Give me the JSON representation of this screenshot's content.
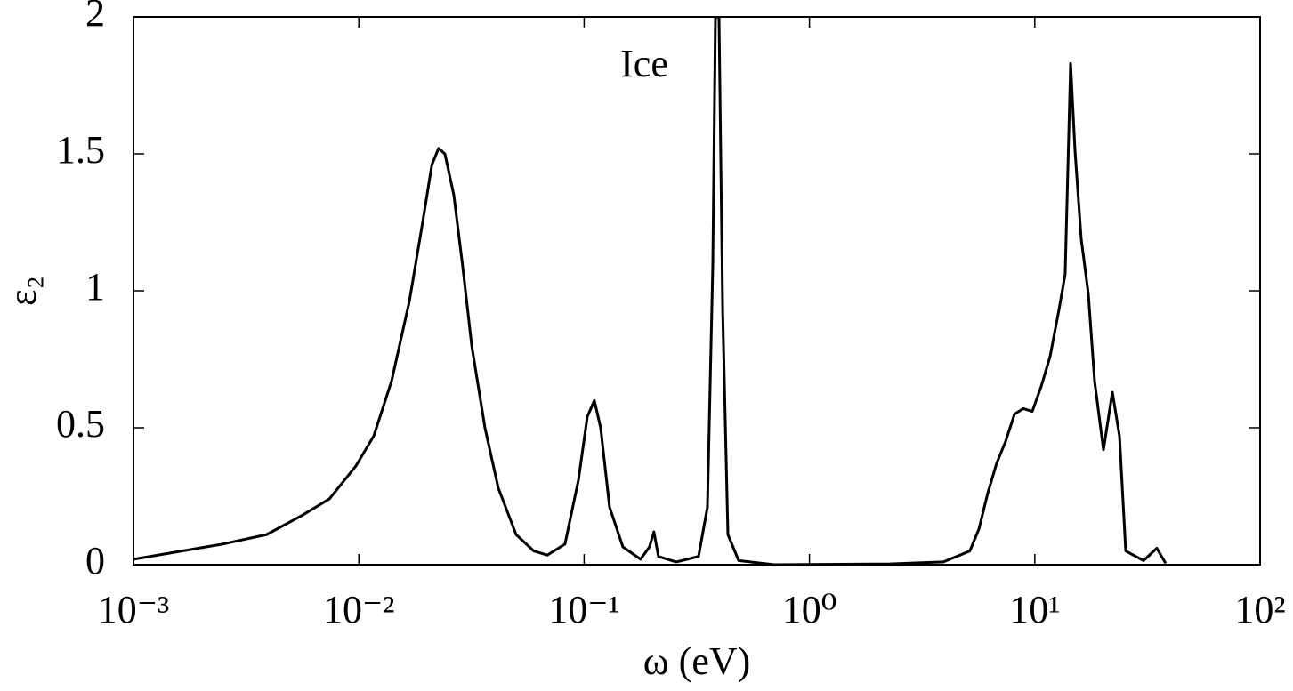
{
  "chart_data": {
    "type": "line",
    "xlabel": "ω (eV)",
    "ylabel": "ε₂",
    "annotation": "Ice",
    "color": "#000000",
    "xscale": "log",
    "xlim": [
      0.001,
      100
    ],
    "ylim": [
      0,
      2
    ],
    "xticks": [
      {
        "value": 0.001,
        "label": "10⁻³"
      },
      {
        "value": 0.01,
        "label": "10⁻²"
      },
      {
        "value": 0.1,
        "label": "10⁻¹"
      },
      {
        "value": 1,
        "label": "10⁰"
      },
      {
        "value": 10,
        "label": "10¹"
      },
      {
        "value": 100,
        "label": "10²"
      }
    ],
    "yticks": [
      0,
      0.5,
      1,
      1.5,
      2
    ],
    "x": [
      0.001,
      0.00248,
      0.0039,
      0.0056,
      0.0074,
      0.0097,
      0.01165,
      0.01397,
      0.01675,
      0.0192,
      0.0211,
      0.0226,
      0.0241,
      0.0264,
      0.0289,
      0.0317,
      0.0363,
      0.0416,
      0.0499,
      0.0598,
      0.0686,
      0.0822,
      0.0944,
      0.1033,
      0.111,
      0.1184,
      0.1297,
      0.1486,
      0.178,
      0.195,
      0.204,
      0.2137,
      0.2562,
      0.322,
      0.3526,
      0.3724,
      0.3827,
      0.397,
      0.412,
      0.4347,
      0.485,
      0.698,
      2.275,
      3.93,
      5.15,
      5.65,
      6.18,
      6.77,
      7.42,
      8.13,
      8.9,
      9.75,
      10.67,
      11.69,
      12.8,
      13.64,
      14.42,
      15.09,
      16.07,
      17.28,
      18.43,
      20.18,
      22.1,
      23.77,
      25.33,
      30.4,
      34.8,
      38.1
    ],
    "values": [
      0.02,
      0.075,
      0.11,
      0.18,
      0.24,
      0.36,
      0.47,
      0.67,
      0.96,
      1.25,
      1.46,
      1.52,
      1.5,
      1.35,
      1.09,
      0.8,
      0.5,
      0.28,
      0.11,
      0.05,
      0.035,
      0.075,
      0.31,
      0.54,
      0.6,
      0.5,
      0.21,
      0.065,
      0.02,
      0.065,
      0.12,
      0.03,
      0.01,
      0.03,
      0.21,
      1.09,
      2.0,
      2.0,
      0.93,
      0.11,
      0.015,
      0,
      0.003,
      0.01,
      0.05,
      0.13,
      0.26,
      0.37,
      0.45,
      0.55,
      0.57,
      0.56,
      0.65,
      0.76,
      0.93,
      1.06,
      1.83,
      1.51,
      1.19,
      0.99,
      0.67,
      0.42,
      0.63,
      0.47,
      0.05,
      0.015,
      0.06,
      0.005
    ]
  }
}
